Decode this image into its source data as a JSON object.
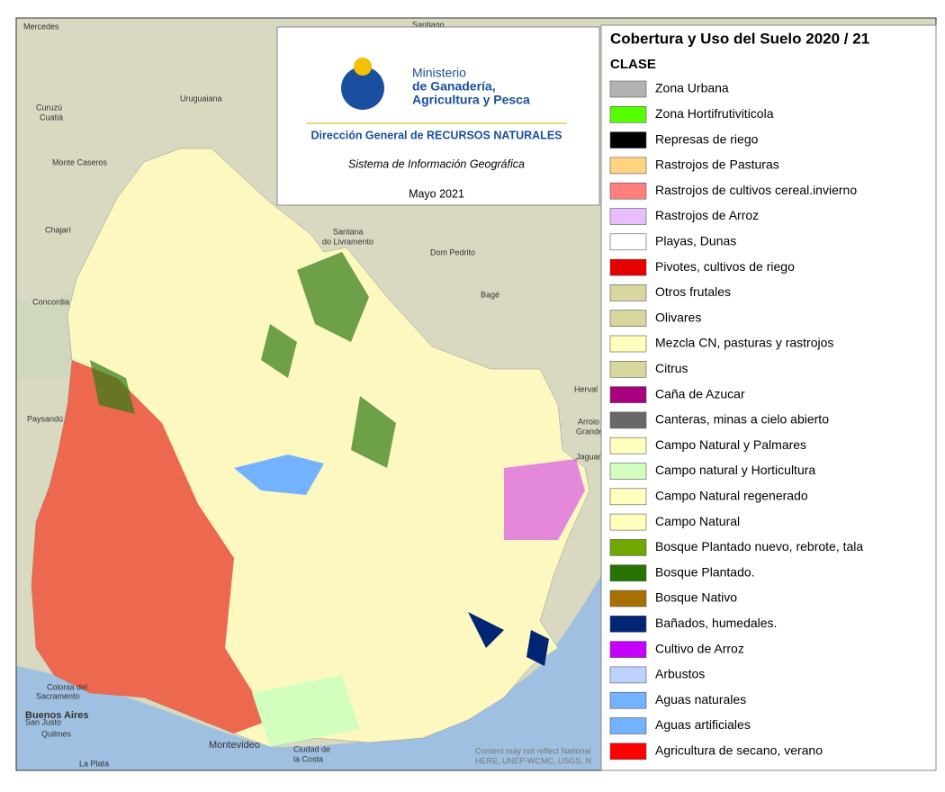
{
  "header": {
    "ministry": "Ministerio",
    "ministry_line2": "de Ganadería,",
    "ministry_line3": "Agricultura y Pesca",
    "direction": "Dirección General de RECURSOS NATURALES",
    "system": "Sistema de Información Geográfica",
    "date": "Mayo 2021"
  },
  "legend": {
    "title": "Cobertura y Uso del Suelo 2020 / 21",
    "subtitle": "CLASE",
    "items": [
      {
        "label": "Zona Urbana",
        "color": "#b2b2b2"
      },
      {
        "label": "Zona Hortifrutiviticola",
        "color": "#55ff00"
      },
      {
        "label": "Represas de riego",
        "color": "#000000"
      },
      {
        "label": "Rastrojos de Pasturas",
        "color": "#ffd37f"
      },
      {
        "label": "Rastrojos de cultivos cereal.invierno",
        "color": "#ff7f7f"
      },
      {
        "label": "Rastrojos de Arroz",
        "color": "#e8beff"
      },
      {
        "label": "Playas, Dunas",
        "color": "#ffffff"
      },
      {
        "label": "Pivotes, cultivos de riego",
        "color": "#e60000"
      },
      {
        "label": "Otros frutales",
        "color": "#d7d79e"
      },
      {
        "label": "Olivares",
        "color": "#d7d79e"
      },
      {
        "label": "Mezcla CN, pasturas y rastrojos",
        "color": "#ffffbe"
      },
      {
        "label": "Citrus",
        "color": "#d7d79e"
      },
      {
        "label": "Caña de Azucar",
        "color": "#a8007f"
      },
      {
        "label": "Canteras, minas a cielo abierto",
        "color": "#686868"
      },
      {
        "label": "Campo Natural y Palmares",
        "color": "#ffffbe"
      },
      {
        "label": "Campo natural y Horticultura",
        "color": "#d3ffbe"
      },
      {
        "label": "Campo Natural regenerado",
        "color": "#ffffbe"
      },
      {
        "label": "Campo Natural",
        "color": "#ffffbe"
      },
      {
        "label": "Bosque Plantado nuevo, rebrote, tala",
        "color": "#70a800"
      },
      {
        "label": "Bosque Plantado.",
        "color": "#267300"
      },
      {
        "label": "Bosque Nativo",
        "color": "#a87000"
      },
      {
        "label": "Bañados, humedales.",
        "color": "#002673"
      },
      {
        "label": "Cultivo de Arroz",
        "color": "#c500ff"
      },
      {
        "label": "Arbustos",
        "color": "#bed2ff"
      },
      {
        "label": "Aguas naturales",
        "color": "#73b2ff"
      },
      {
        "label": "Aguas artificiales",
        "color": "#73b2ff"
      },
      {
        "label": "Agricultura de secano, verano",
        "color": "#ff0000"
      }
    ]
  },
  "places": [
    "Mercedes",
    "Santiago",
    "Uruguaiana",
    "Curuzú",
    "Cuatiá",
    "Monte Caseros",
    "Chajarí",
    "Santana",
    "do Livramento",
    "Dom Pedrito",
    "Bagé",
    "Concordia",
    "Paysandú",
    "Herval",
    "Arroio",
    "Grande",
    "Jaguarão",
    "Colonia del",
    "Sacramento",
    "Buenos Aires",
    "San Justo",
    "Quilmes",
    "La Plata",
    "Montevideo",
    "Ciudad de",
    "la Costa"
  ],
  "attribution": [
    "Content may not reflect National",
    "HERE, UNEP-WCMC, USGS, N"
  ]
}
